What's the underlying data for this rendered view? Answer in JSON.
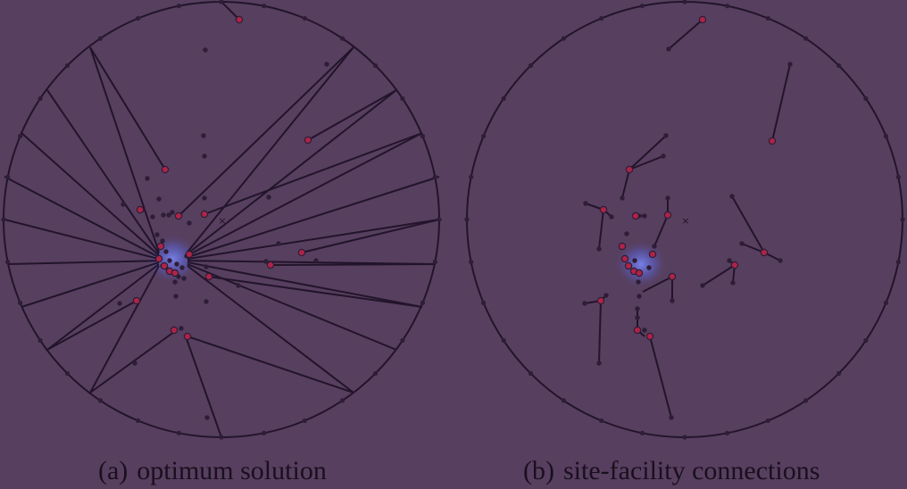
{
  "captions": {
    "a": {
      "tag": "(a)",
      "text": "optimum solution"
    },
    "b": {
      "tag": "(b)",
      "text": "site-facility connections"
    }
  },
  "colors": {
    "background": "#573f5f",
    "ink": "#22142a",
    "facility": "#b02348",
    "site": "#2e1d36",
    "cluster_glow": "#6e7cff"
  },
  "center_marker": "×"
}
